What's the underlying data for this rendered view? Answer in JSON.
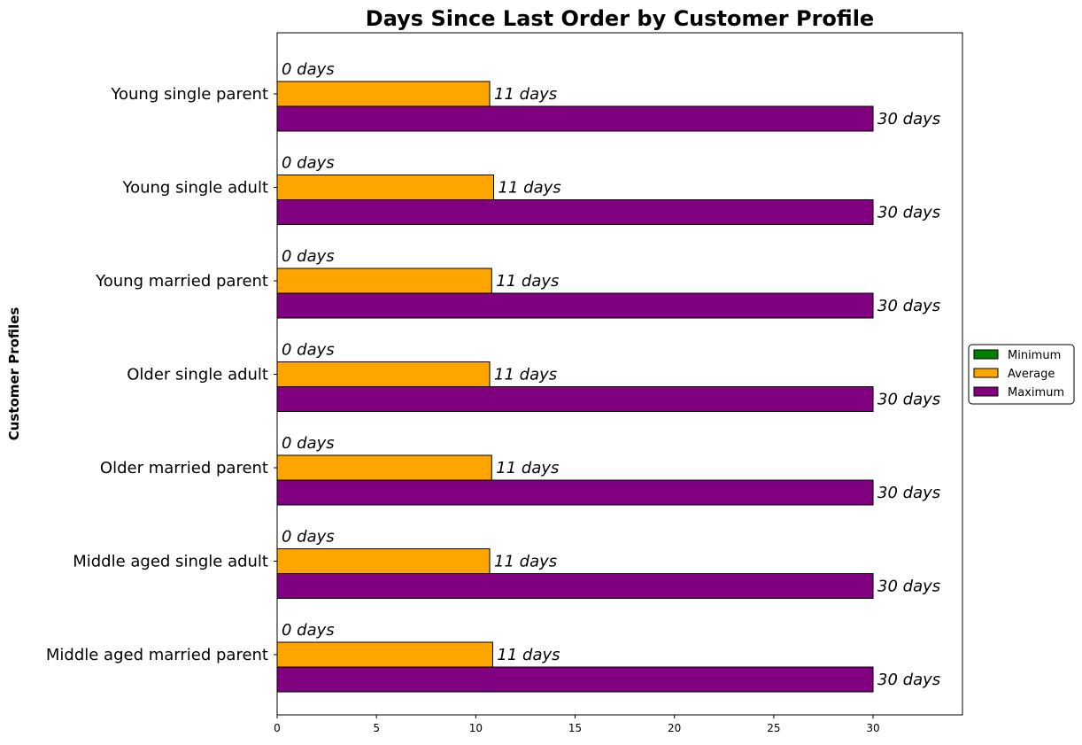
{
  "chart_data": {
    "type": "bar",
    "orientation": "horizontal",
    "title": "Days Since Last Order by Customer Profile",
    "xlabel": "",
    "ylabel": "Customer Profiles",
    "xlim": [
      0,
      34.5
    ],
    "xticks": [
      0,
      5,
      10,
      15,
      20,
      25,
      30
    ],
    "grid": false,
    "legend_position": "center-right outside",
    "categories": [
      "Young single parent",
      "Young single adult",
      "Young married parent",
      "Older single adult",
      "Older married parent",
      "Middle aged single adult",
      "Middle aged married parent"
    ],
    "series": [
      {
        "name": "Minimum",
        "color": "#008000",
        "values": [
          0,
          0,
          0,
          0,
          0,
          0,
          0
        ],
        "labels": [
          "0 days",
          "0 days",
          "0 days",
          "0 days",
          "0 days",
          "0 days",
          "0 days"
        ]
      },
      {
        "name": "Average",
        "color": "#FFA500",
        "values": [
          10.7,
          10.9,
          10.8,
          10.7,
          10.8,
          10.7,
          10.85
        ],
        "labels": [
          "11 days",
          "11 days",
          "11 days",
          "11 days",
          "11 days",
          "11 days",
          "11 days"
        ]
      },
      {
        "name": "Maximum",
        "color": "#800080",
        "values": [
          30,
          30,
          30,
          30,
          30,
          30,
          30
        ],
        "labels": [
          "30 days",
          "30 days",
          "30 days",
          "30 days",
          "30 days",
          "30 days",
          "30 days"
        ]
      }
    ]
  }
}
